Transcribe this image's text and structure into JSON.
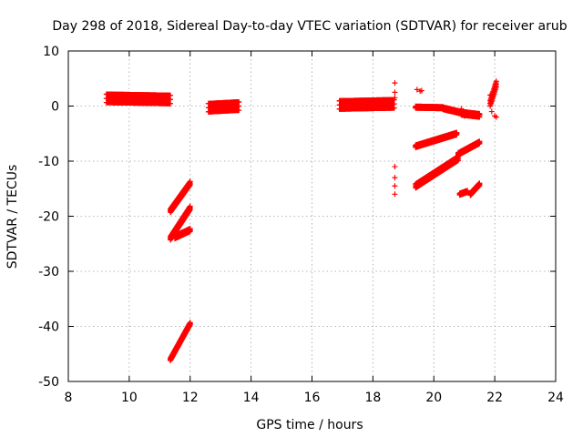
{
  "chart_data": {
    "type": "scatter",
    "title": "Day 298 of 2018, Sidereal Day-to-day VTEC variation (SDTVAR) for receiver arub",
    "xlabel": "GPS time / hours",
    "ylabel": "SDTVAR / TECUs",
    "xlim": [
      8,
      24
    ],
    "ylim": [
      -50,
      10
    ],
    "xticks": [
      "8",
      "10",
      "12",
      "14",
      "16",
      "18",
      "20",
      "22",
      "24"
    ],
    "yticks": [
      "10",
      "0",
      "-10",
      "-20",
      "-30",
      "-40",
      "-50"
    ],
    "xtick_values": [
      8,
      10,
      12,
      14,
      16,
      18,
      20,
      22,
      24
    ],
    "ytick_values": [
      10,
      0,
      -10,
      -20,
      -30,
      -40,
      -50
    ],
    "grid": true,
    "marker": "plus",
    "color": "#ff0000",
    "tracks": [
      {
        "x0": 9.25,
        "x1": 11.35,
        "y0": 1.4,
        "y1": 1.2,
        "spread": 1.5
      },
      {
        "x0": 12.6,
        "x1": 13.6,
        "y0": -0.3,
        "y1": 0.0,
        "spread": 1.5
      },
      {
        "x0": 16.9,
        "x1": 18.7,
        "y0": 0.2,
        "y1": 0.4,
        "spread": 1.5
      },
      {
        "x0": 19.4,
        "x1": 20.3,
        "y0": -0.2,
        "y1": -0.3,
        "spread": 0.3
      },
      {
        "x0": 20.3,
        "x1": 20.9,
        "y0": -0.4,
        "y1": -1.2,
        "spread": 0.4
      },
      {
        "x0": 20.9,
        "x1": 21.5,
        "y0": -1.3,
        "y1": -1.7,
        "spread": 0.6
      },
      {
        "x0": 11.35,
        "x1": 12.0,
        "y0": -19.0,
        "y1": -14.0,
        "spread": 0.6
      },
      {
        "x0": 11.35,
        "x1": 12.0,
        "y0": -24.0,
        "y1": -18.5,
        "spread": 0.6
      },
      {
        "x0": 11.5,
        "x1": 12.0,
        "y0": -23.8,
        "y1": -22.5,
        "spread": 0.5
      },
      {
        "x0": 11.35,
        "x1": 12.0,
        "y0": -46.0,
        "y1": -39.5,
        "spread": 0.4
      },
      {
        "x0": 19.4,
        "x1": 20.75,
        "y0": -7.3,
        "y1": -5.0,
        "spread": 0.4
      },
      {
        "x0": 19.4,
        "x1": 20.8,
        "y0": -14.5,
        "y1": -9.5,
        "spread": 0.7
      },
      {
        "x0": 20.8,
        "x1": 21.5,
        "y0": -8.7,
        "y1": -6.6,
        "spread": 0.4
      },
      {
        "x0": 20.85,
        "x1": 21.1,
        "y0": -16.0,
        "y1": -15.5,
        "spread": 0.3
      },
      {
        "x0": 21.2,
        "x1": 21.5,
        "y0": -16.0,
        "y1": -14.2,
        "spread": 0.4
      },
      {
        "x0": 21.85,
        "x1": 22.05,
        "y0": 0.5,
        "y1": 4.0,
        "spread": 1.0
      }
    ],
    "points": [
      [
        18.72,
        4.2
      ],
      [
        18.72,
        2.5
      ],
      [
        18.72,
        1.5
      ],
      [
        18.72,
        -11.0
      ],
      [
        18.72,
        -13.0
      ],
      [
        18.72,
        -14.5
      ],
      [
        18.72,
        -16.0
      ],
      [
        19.45,
        3.0
      ],
      [
        19.55,
        2.7
      ],
      [
        19.6,
        2.8
      ],
      [
        21.9,
        -1.0
      ],
      [
        21.85,
        2.0
      ],
      [
        22.0,
        -1.8
      ],
      [
        22.05,
        -2.0
      ],
      [
        20.9,
        -0.5
      ],
      [
        21.0,
        -1.8
      ],
      [
        21.5,
        -1.5
      ]
    ]
  }
}
